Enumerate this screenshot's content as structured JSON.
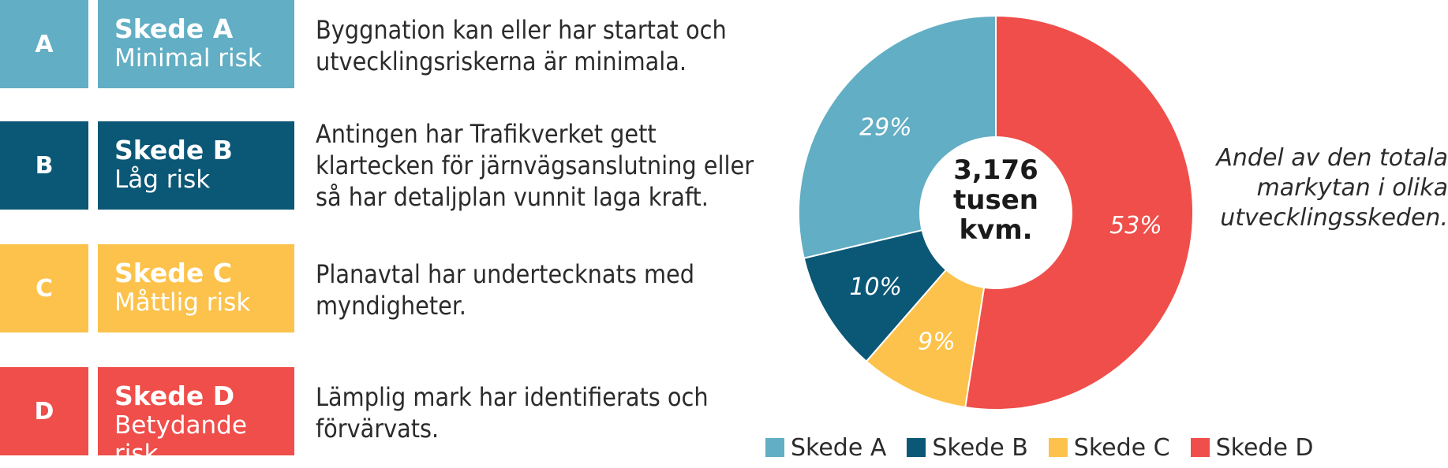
{
  "stages": [
    {
      "letter": "A",
      "title": "Skede A",
      "risk": "Minimal risk",
      "description": "Byggnation kan eller har startat och utvecklingsriskerna är minimala.",
      "color": "#62aec4"
    },
    {
      "letter": "B",
      "title": "Skede B",
      "risk": "Låg risk",
      "description": "Antingen har Trafikverket gett klartecken för järnvägsanslutning eller så har detaljplan vunnit laga kraft.",
      "color": "#0b5776"
    },
    {
      "letter": "C",
      "title": "Skede C",
      "risk": "Måttlig risk",
      "description": "Planavtal har undertecknats med myndigheter.",
      "color": "#fcc24b"
    },
    {
      "letter": "D",
      "title": "Skede D",
      "risk": "Betydande risk",
      "description": "Lämplig mark har identifierats och förvärvats.",
      "color": "#ef4e4a"
    }
  ],
  "chart_data": {
    "type": "pie",
    "donut": true,
    "categories": [
      "Skede A",
      "Skede B",
      "Skede C",
      "Skede D"
    ],
    "values": [
      29,
      10,
      9,
      53
    ],
    "value_labels": [
      "29%",
      "10%",
      "9%",
      "53%"
    ],
    "colors": [
      "#62aec4",
      "#0b5776",
      "#fcc24b",
      "#ef4e4a"
    ],
    "center_label": [
      "3,176",
      "tusen",
      "kvm."
    ],
    "legend": {
      "position": "bottom",
      "entries": [
        "Skede A",
        "Skede B",
        "Skede C",
        "Skede D"
      ]
    }
  },
  "caption": "Andel av den totala markytan i olika utvecklingsskeden."
}
